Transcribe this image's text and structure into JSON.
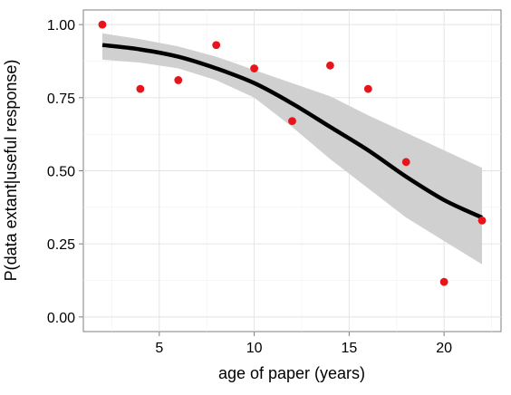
{
  "chart_data": {
    "type": "scatter",
    "title": "",
    "xlabel": "age of paper (years)",
    "ylabel": "P(data extant|useful response)",
    "xlim": [
      1.0,
      23.0
    ],
    "ylim": [
      -0.05,
      1.05
    ],
    "x_ticks": [
      5,
      10,
      15,
      20
    ],
    "x_tick_labels": [
      "5",
      "10",
      "15",
      "20"
    ],
    "y_ticks": [
      0.0,
      0.25,
      0.5,
      0.75,
      1.0
    ],
    "y_tick_labels": [
      "0.00",
      "0.25",
      "0.50",
      "0.75",
      "1.00"
    ],
    "grid": true,
    "series": [
      {
        "kind": "points",
        "color": "#e8141a",
        "points": [
          {
            "x": 2,
            "y": 1.0
          },
          {
            "x": 4,
            "y": 0.78
          },
          {
            "x": 6,
            "y": 0.81
          },
          {
            "x": 8,
            "y": 0.93
          },
          {
            "x": 10,
            "y": 0.85
          },
          {
            "x": 12,
            "y": 0.67
          },
          {
            "x": 14,
            "y": 0.86
          },
          {
            "x": 16,
            "y": 0.78
          },
          {
            "x": 18,
            "y": 0.53
          },
          {
            "x": 20,
            "y": 0.12
          },
          {
            "x": 22,
            "y": 0.33
          }
        ]
      },
      {
        "kind": "fit-line",
        "color": "#000000",
        "points": [
          {
            "x": 2,
            "y": 0.93
          },
          {
            "x": 4,
            "y": 0.915
          },
          {
            "x": 6,
            "y": 0.89
          },
          {
            "x": 8,
            "y": 0.85
          },
          {
            "x": 10,
            "y": 0.8
          },
          {
            "x": 12,
            "y": 0.73
          },
          {
            "x": 14,
            "y": 0.65
          },
          {
            "x": 16,
            "y": 0.57
          },
          {
            "x": 18,
            "y": 0.48
          },
          {
            "x": 20,
            "y": 0.4
          },
          {
            "x": 22,
            "y": 0.34
          }
        ]
      },
      {
        "kind": "confidence-band",
        "color": "#d0d0d0",
        "points": [
          {
            "x": 2,
            "lower": 0.88,
            "upper": 0.97
          },
          {
            "x": 4,
            "lower": 0.87,
            "upper": 0.95
          },
          {
            "x": 6,
            "lower": 0.85,
            "upper": 0.925
          },
          {
            "x": 8,
            "lower": 0.81,
            "upper": 0.89
          },
          {
            "x": 10,
            "lower": 0.75,
            "upper": 0.845
          },
          {
            "x": 12,
            "lower": 0.65,
            "upper": 0.8
          },
          {
            "x": 14,
            "lower": 0.54,
            "upper": 0.755
          },
          {
            "x": 16,
            "lower": 0.44,
            "upper": 0.69
          },
          {
            "x": 18,
            "lower": 0.34,
            "upper": 0.63
          },
          {
            "x": 20,
            "lower": 0.26,
            "upper": 0.57
          },
          {
            "x": 22,
            "lower": 0.18,
            "upper": 0.51
          }
        ]
      }
    ]
  }
}
